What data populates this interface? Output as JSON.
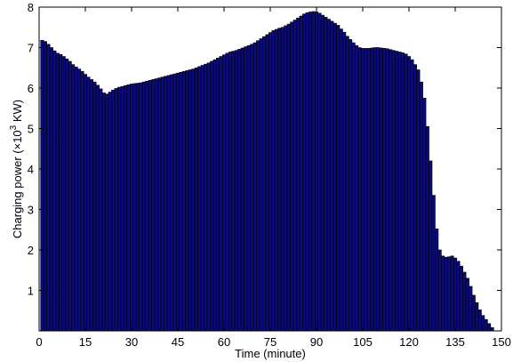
{
  "chart_data": {
    "type": "bar",
    "title": "",
    "xlabel": "Time (minute)",
    "ylabel": {
      "prefix": "Charging power (×10",
      "sup": "3",
      "suffix": " KW)"
    },
    "xlim": [
      0,
      150
    ],
    "ylim": [
      0,
      8
    ],
    "xticks": [
      0,
      15,
      30,
      45,
      60,
      75,
      90,
      105,
      120,
      135,
      150
    ],
    "yticks": [
      1,
      2,
      3,
      4,
      5,
      6,
      7,
      8
    ],
    "grid": false,
    "bar_color": "#0a0a78",
    "bar_edge_color": "#000000",
    "x": [
      1,
      2,
      3,
      4,
      5,
      6,
      7,
      8,
      9,
      10,
      11,
      12,
      13,
      14,
      15,
      16,
      17,
      18,
      19,
      20,
      21,
      22,
      23,
      24,
      25,
      26,
      27,
      28,
      29,
      30,
      31,
      32,
      33,
      34,
      35,
      36,
      37,
      38,
      39,
      40,
      41,
      42,
      43,
      44,
      45,
      46,
      47,
      48,
      49,
      50,
      51,
      52,
      53,
      54,
      55,
      56,
      57,
      58,
      59,
      60,
      61,
      62,
      63,
      64,
      65,
      66,
      67,
      68,
      69,
      70,
      71,
      72,
      73,
      74,
      75,
      76,
      77,
      78,
      79,
      80,
      81,
      82,
      83,
      84,
      85,
      86,
      87,
      88,
      89,
      90,
      91,
      92,
      93,
      94,
      95,
      96,
      97,
      98,
      99,
      100,
      101,
      102,
      103,
      104,
      105,
      106,
      107,
      108,
      109,
      110,
      111,
      112,
      113,
      114,
      115,
      116,
      117,
      118,
      119,
      120,
      121,
      122,
      123,
      124,
      125,
      126,
      127,
      128,
      129,
      130,
      131,
      132,
      133,
      134,
      135,
      136,
      137,
      138,
      139,
      140,
      141,
      142,
      143,
      144,
      145,
      146,
      147
    ],
    "values": [
      7.18,
      7.15,
      7.08,
      7.0,
      6.92,
      6.86,
      6.83,
      6.78,
      6.72,
      6.66,
      6.58,
      6.52,
      6.47,
      6.41,
      6.34,
      6.27,
      6.21,
      6.15,
      6.07,
      5.98,
      5.88,
      5.85,
      5.9,
      5.95,
      5.99,
      6.02,
      6.04,
      6.06,
      6.08,
      6.1,
      6.11,
      6.12,
      6.13,
      6.15,
      6.17,
      6.19,
      6.21,
      6.23,
      6.25,
      6.27,
      6.29,
      6.31,
      6.33,
      6.35,
      6.37,
      6.39,
      6.41,
      6.43,
      6.45,
      6.47,
      6.5,
      6.53,
      6.56,
      6.59,
      6.62,
      6.66,
      6.7,
      6.74,
      6.78,
      6.82,
      6.86,
      6.89,
      6.91,
      6.93,
      6.96,
      6.99,
      7.02,
      7.05,
      7.08,
      7.12,
      7.17,
      7.22,
      7.27,
      7.32,
      7.37,
      7.42,
      7.45,
      7.48,
      7.5,
      7.54,
      7.58,
      7.63,
      7.68,
      7.73,
      7.78,
      7.83,
      7.86,
      7.88,
      7.89,
      7.88,
      7.85,
      7.8,
      7.75,
      7.7,
      7.65,
      7.6,
      7.55,
      7.46,
      7.38,
      7.28,
      7.2,
      7.12,
      7.05,
      7.0,
      6.98,
      6.98,
      6.98,
      6.99,
      7.0,
      7.0,
      6.99,
      6.98,
      6.97,
      6.95,
      6.93,
      6.91,
      6.89,
      6.87,
      6.84,
      6.78,
      6.7,
      6.58,
      6.45,
      6.15,
      5.75,
      5.05,
      4.2,
      3.35,
      2.52,
      2.0,
      1.85,
      1.82,
      1.83,
      1.85,
      1.8,
      1.72,
      1.6,
      1.45,
      1.3,
      1.1,
      0.88,
      0.7,
      0.52,
      0.38,
      0.28,
      0.18,
      0.08
    ]
  }
}
